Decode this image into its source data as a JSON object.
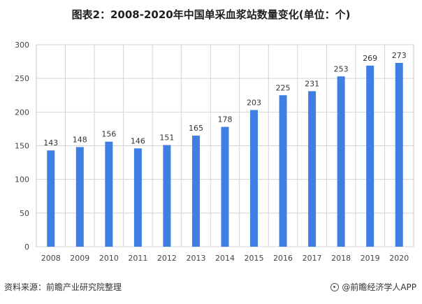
{
  "title": "图表2：2008-2020年中国单采血浆站数量变化(单位：个)",
  "source": "资料来源：前瞻产业研究院整理",
  "brand": "@前瞻经济学人APP",
  "colors": {
    "bar": "#3f7fe3",
    "grid": "#d4d4d4",
    "plot_bg": "#ffffff"
  },
  "chart_data": {
    "type": "bar",
    "title": "图表2：2008-2020年中国单采血浆站数量变化(单位：个)",
    "categories": [
      "2008",
      "2009",
      "2010",
      "2011",
      "2012",
      "2013",
      "2014",
      "2015",
      "2016",
      "2017",
      "2018",
      "2019",
      "2020"
    ],
    "values": [
      143,
      148,
      156,
      146,
      151,
      165,
      178,
      203,
      225,
      231,
      253,
      269,
      273
    ],
    "ylim": [
      0,
      300
    ],
    "yticks": [
      0,
      50,
      100,
      150,
      200,
      250,
      300
    ],
    "xlabel": "",
    "ylabel": "",
    "grid": true,
    "legend": "none"
  }
}
